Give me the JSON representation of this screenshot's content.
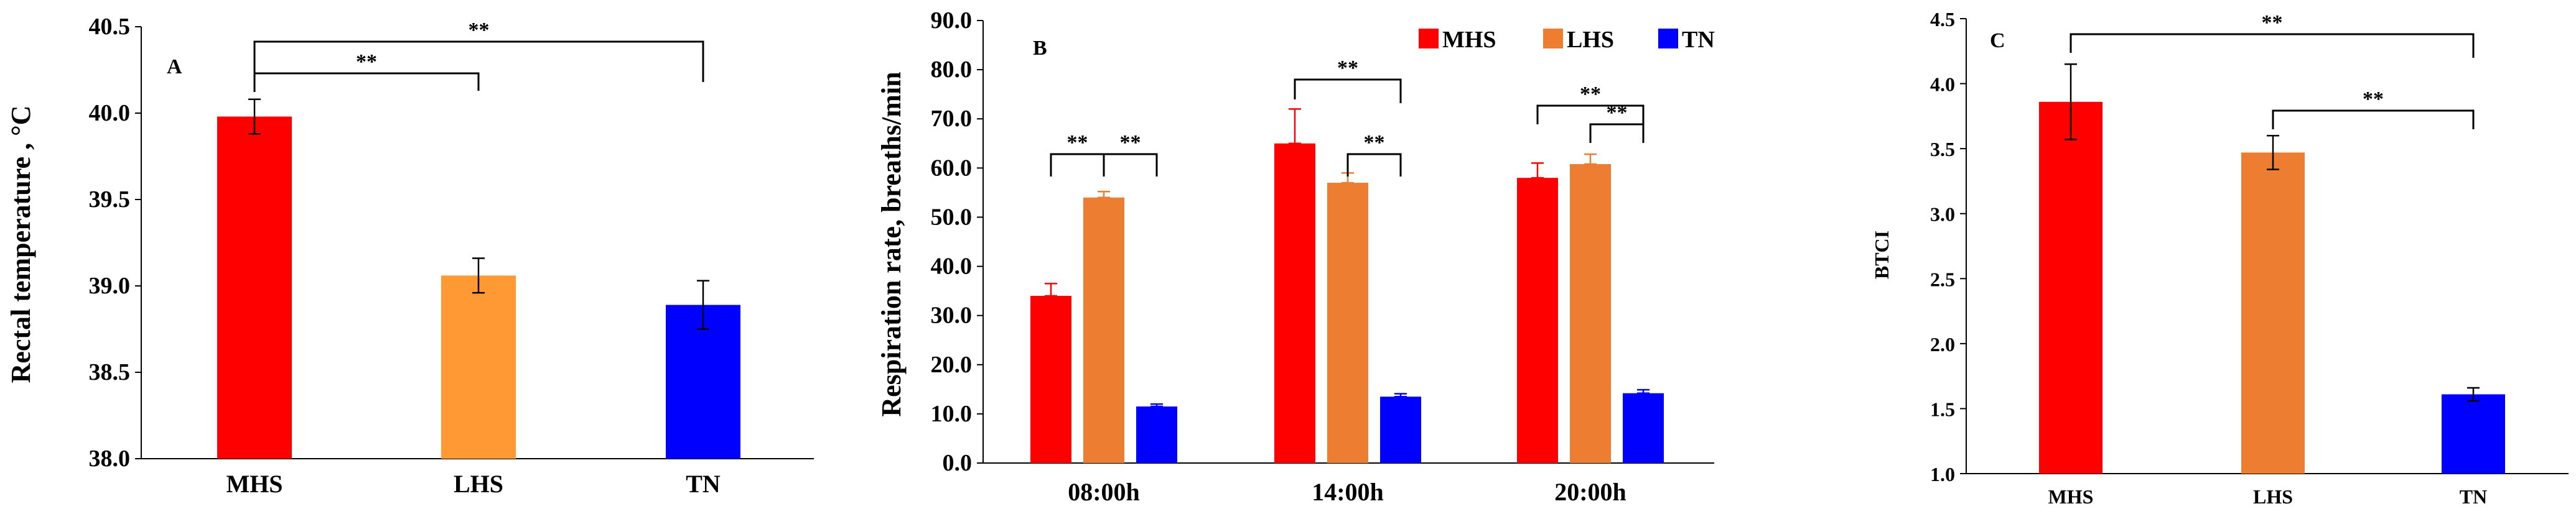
{
  "chart_data": [
    {
      "type": "bar",
      "panel_label": "A",
      "categories": [
        "MHS",
        "LHS",
        "TN"
      ],
      "values": [
        39.98,
        39.06,
        38.89
      ],
      "errors": [
        0.1,
        0.1,
        0.14
      ],
      "colors": [
        "#ff0000",
        "#ff9933",
        "#0000ff"
      ],
      "ylabel": "Rectal temperature , °C",
      "ylim": [
        38.0,
        40.5
      ],
      "yticks": [
        "38.0",
        "38.5",
        "39.0",
        "39.5",
        "40.0",
        "40.5"
      ],
      "significance": [
        {
          "from": "MHS",
          "to": "LHS",
          "label": "**"
        },
        {
          "from": "MHS",
          "to": "TN",
          "label": "**"
        }
      ]
    },
    {
      "type": "bar",
      "panel_label": "B",
      "categories": [
        "08:00h",
        "14:00h",
        "20:00h"
      ],
      "series": [
        {
          "name": "MHS",
          "color": "#ff0000",
          "values": [
            34.0,
            65.0,
            58.0
          ],
          "errors": [
            2.5,
            7.0,
            3.0
          ]
        },
        {
          "name": "LHS",
          "color": "#ed7d31",
          "values": [
            54.0,
            57.0,
            60.8
          ],
          "errors": [
            1.2,
            2.0,
            2.0
          ]
        },
        {
          "name": "TN",
          "color": "#0000ff",
          "values": [
            11.5,
            13.5,
            14.2
          ],
          "errors": [
            0.5,
            0.6,
            0.7
          ]
        }
      ],
      "ylabel": "Respiration rate, breaths/min",
      "ylim": [
        0,
        90
      ],
      "yticks": [
        "0.0",
        "10.0",
        "20.0",
        "30.0",
        "40.0",
        "50.0",
        "60.0",
        "70.0",
        "80.0",
        "90.0"
      ],
      "legend": "top-right",
      "significance": [
        {
          "group": "08:00h",
          "from": "MHS",
          "to": "LHS",
          "label": "**"
        },
        {
          "group": "08:00h",
          "from": "LHS",
          "to": "TN",
          "label": "**"
        },
        {
          "group": "14:00h",
          "from": "MHS",
          "to": "TN",
          "label": "**"
        },
        {
          "group": "14:00h",
          "from": "LHS",
          "to": "TN",
          "label": "**"
        },
        {
          "group": "20:00h",
          "from": "MHS",
          "to": "TN",
          "label": "**"
        },
        {
          "group": "20:00h",
          "from": "LHS",
          "to": "TN",
          "label": "**"
        }
      ]
    },
    {
      "type": "bar",
      "panel_label": "C",
      "categories": [
        "MHS",
        "LHS",
        "TN"
      ],
      "values": [
        3.86,
        3.47,
        1.61
      ],
      "errors": [
        0.29,
        0.13,
        0.05
      ],
      "colors": [
        "#ff0000",
        "#ed7d31",
        "#0000ff"
      ],
      "ylabel": "BTCI",
      "ylim": [
        1.0,
        4.5
      ],
      "yticks": [
        "1.0",
        "1.5",
        "2.0",
        "2.5",
        "3.0",
        "3.5",
        "4.0",
        "4.5"
      ],
      "significance": [
        {
          "from": "MHS",
          "to": "TN",
          "label": "**"
        },
        {
          "from": "LHS",
          "to": "TN",
          "label": "**"
        }
      ]
    }
  ]
}
